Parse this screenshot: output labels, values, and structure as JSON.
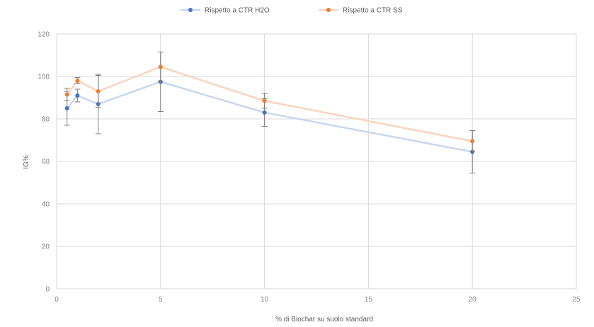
{
  "chart_data": {
    "type": "scatter",
    "title": "",
    "xlabel": "% di Biochar su suolo standard",
    "ylabel": "IG%",
    "xlim": [
      0,
      25
    ],
    "ylim": [
      0,
      120
    ],
    "x_ticks": [
      0,
      5,
      10,
      15,
      20,
      25
    ],
    "y_ticks": [
      0,
      20,
      40,
      60,
      80,
      100,
      120
    ],
    "grid": true,
    "legend_position": "top",
    "series": [
      {
        "name": "Rispetto a CTR H2O",
        "color": "#4472c4",
        "line_color": "#c9d6ee",
        "points": [
          {
            "x": 0.5,
            "y": 85,
            "err": 8
          },
          {
            "x": 1,
            "y": 91,
            "err": 3
          },
          {
            "x": 2,
            "y": 87,
            "err": 14
          },
          {
            "x": 5,
            "y": 97.5,
            "err": 14
          },
          {
            "x": 10,
            "y": 83,
            "err": 6.5
          },
          {
            "x": 20,
            "y": 64.5,
            "err": 10
          }
        ]
      },
      {
        "name": "Rispetto a CTR SS",
        "color": "#ed7d31",
        "line_color": "#fad4bd",
        "points": [
          {
            "x": 0.5,
            "y": 91.5,
            "err": 3
          },
          {
            "x": 1,
            "y": 98,
            "err": 1.5
          },
          {
            "x": 2,
            "y": 93,
            "err": 7.5
          },
          {
            "x": 5,
            "y": 104.5,
            "err": 7
          },
          {
            "x": 10,
            "y": 88.5,
            "err": 3.5
          },
          {
            "x": 20,
            "y": 69.5,
            "err": 5
          }
        ]
      }
    ]
  }
}
